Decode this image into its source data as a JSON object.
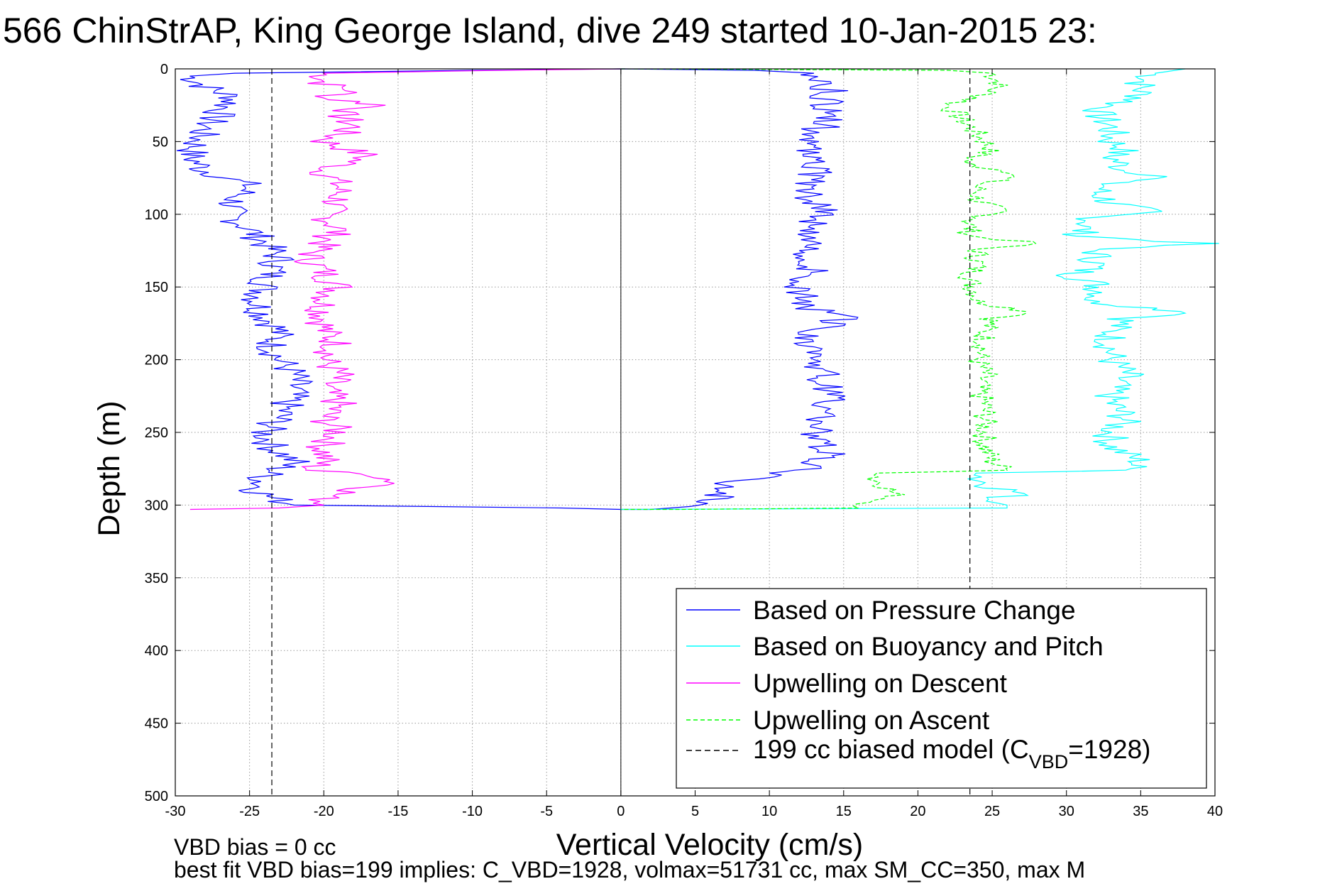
{
  "chart_data": {
    "type": "line",
    "title": "566 ChinStrAP, King George Island, dive 249 started 10-Jan-2015 23:",
    "xlabel": "Vertical Velocity (cm/s)",
    "ylabel": "Depth (m)",
    "xlim": [
      -30,
      40
    ],
    "ylim": [
      0,
      500
    ],
    "y_reversed": true,
    "grid": true,
    "legend_position": "bottom-right",
    "x_ticks": [
      "-30",
      "-25",
      "-20",
      "-15",
      "-10",
      "-5",
      "0",
      "5",
      "10",
      "15",
      "20",
      "25",
      "30",
      "35",
      "40"
    ],
    "y_ticks": [
      "0",
      "50",
      "100",
      "150",
      "200",
      "250",
      "300",
      "350",
      "400",
      "450",
      "500"
    ],
    "series": [
      {
        "name": "Based on Pressure Change",
        "color": "#0000ff",
        "style": "solid",
        "points": [
          [
            0,
            0
          ],
          [
            -10,
            1
          ],
          [
            -26,
            3
          ],
          [
            -29,
            5
          ],
          [
            -28,
            12
          ],
          [
            -26,
            20
          ],
          [
            -27,
            30
          ],
          [
            -28,
            40
          ],
          [
            -28.5,
            50
          ],
          [
            -29,
            60
          ],
          [
            -28,
            70
          ],
          [
            -25,
            80
          ],
          [
            -26,
            90
          ],
          [
            -26.5,
            100
          ],
          [
            -25,
            110
          ],
          [
            -24,
            120
          ],
          [
            -23,
            130
          ],
          [
            -23.5,
            140
          ],
          [
            -24,
            150
          ],
          [
            -24.5,
            160
          ],
          [
            -24,
            170
          ],
          [
            -23,
            180
          ],
          [
            -23.5,
            190
          ],
          [
            -23,
            200
          ],
          [
            -22,
            210
          ],
          [
            -22,
            220
          ],
          [
            -22.5,
            230
          ],
          [
            -23,
            240
          ],
          [
            -24,
            250
          ],
          [
            -23.5,
            260
          ],
          [
            -22,
            270
          ],
          [
            -24,
            280
          ],
          [
            -24.5,
            290
          ],
          [
            -23.5,
            295
          ],
          [
            -22,
            300
          ],
          [
            -4,
            302
          ],
          [
            0,
            303
          ],
          [
            2,
            303
          ],
          [
            6,
            300
          ],
          [
            7,
            292
          ],
          [
            7,
            284
          ],
          [
            9,
            282
          ],
          [
            10,
            278
          ],
          [
            12,
            276
          ],
          [
            13,
            272
          ],
          [
            14,
            266
          ],
          [
            13.5,
            260
          ],
          [
            13,
            250
          ],
          [
            13.5,
            240
          ],
          [
            14,
            230
          ],
          [
            14,
            220
          ],
          [
            13.5,
            210
          ],
          [
            13.5,
            200
          ],
          [
            13,
            190
          ],
          [
            13,
            180
          ],
          [
            15,
            172
          ],
          [
            13,
            165
          ],
          [
            12,
            155
          ],
          [
            12.5,
            145
          ],
          [
            13,
            135
          ],
          [
            12.5,
            125
          ],
          [
            12.5,
            115
          ],
          [
            13,
            105
          ],
          [
            14,
            97
          ],
          [
            13,
            90
          ],
          [
            13,
            80
          ],
          [
            13,
            70
          ],
          [
            12.5,
            60
          ],
          [
            13,
            50
          ],
          [
            13.5,
            40
          ],
          [
            14,
            30
          ],
          [
            14,
            20
          ],
          [
            14,
            10
          ],
          [
            13,
            3
          ],
          [
            9,
            1
          ],
          [
            0,
            0
          ]
        ]
      },
      {
        "name": "Based on Buoyancy and Pitch",
        "color": "#00ffff",
        "style": "solid",
        "points": [
          [
            38,
            0
          ],
          [
            36,
            3
          ],
          [
            35,
            10
          ],
          [
            35,
            20
          ],
          [
            33,
            25
          ],
          [
            32,
            30
          ],
          [
            33,
            40
          ],
          [
            33,
            50
          ],
          [
            34,
            55
          ],
          [
            33,
            60
          ],
          [
            34,
            70
          ],
          [
            37,
            74
          ],
          [
            33,
            78
          ],
          [
            32,
            85
          ],
          [
            33,
            92
          ],
          [
            35.5,
            98
          ],
          [
            32,
            102
          ],
          [
            31,
            110
          ],
          [
            31,
            115
          ],
          [
            39,
            120
          ],
          [
            32,
            124
          ],
          [
            32,
            135
          ],
          [
            30.5,
            142
          ],
          [
            32,
            148
          ],
          [
            32.5,
            155
          ],
          [
            31.5,
            160
          ],
          [
            39,
            168
          ],
          [
            34,
            172
          ],
          [
            33,
            180
          ],
          [
            33,
            190
          ],
          [
            33,
            200
          ],
          [
            34,
            210
          ],
          [
            33,
            220
          ],
          [
            33,
            230
          ],
          [
            34,
            240
          ],
          [
            33,
            250
          ],
          [
            33,
            260
          ],
          [
            35,
            270
          ],
          [
            34,
            276
          ],
          [
            25,
            278
          ],
          [
            24,
            282
          ],
          [
            25,
            287
          ],
          [
            27,
            292
          ],
          [
            25,
            296
          ],
          [
            26,
            300
          ],
          [
            26,
            302
          ],
          [
            0,
            303
          ]
        ]
      },
      {
        "name": "Upwelling on Descent",
        "color": "#ff00ff",
        "style": "solid",
        "points": [
          [
            0,
            0
          ],
          [
            -8,
            1
          ],
          [
            -20,
            3
          ],
          [
            -20,
            10
          ],
          [
            -18,
            15
          ],
          [
            -20,
            20
          ],
          [
            -16,
            25
          ],
          [
            -19,
            30
          ],
          [
            -18,
            40
          ],
          [
            -20,
            50
          ],
          [
            -17,
            60
          ],
          [
            -20,
            70
          ],
          [
            -19,
            80
          ],
          [
            -19,
            90
          ],
          [
            -20,
            100
          ],
          [
            -19,
            110
          ],
          [
            -20,
            120
          ],
          [
            -21,
            130
          ],
          [
            -20,
            140
          ],
          [
            -19,
            150
          ],
          [
            -20,
            160
          ],
          [
            -20,
            170
          ],
          [
            -20,
            180
          ],
          [
            -19,
            190
          ],
          [
            -20,
            200
          ],
          [
            -19,
            210
          ],
          [
            -20,
            220
          ],
          [
            -19,
            230
          ],
          [
            -20,
            240
          ],
          [
            -19,
            250
          ],
          [
            -20,
            260
          ],
          [
            -20,
            270
          ],
          [
            -21,
            276
          ],
          [
            -16,
            280
          ],
          [
            -15,
            285
          ],
          [
            -18,
            290
          ],
          [
            -20,
            295
          ],
          [
            -20,
            300
          ],
          [
            -23,
            302
          ],
          [
            -29,
            303
          ]
        ]
      },
      {
        "name": "Upwelling on Ascent",
        "color": "#00ff00",
        "style": "dashed",
        "points": [
          [
            0,
            0
          ],
          [
            22,
            1
          ],
          [
            25,
            3
          ],
          [
            25.5,
            10
          ],
          [
            25,
            15
          ],
          [
            24,
            20
          ],
          [
            22,
            25
          ],
          [
            23,
            35
          ],
          [
            24,
            45
          ],
          [
            25,
            55
          ],
          [
            23,
            65
          ],
          [
            27,
            72
          ],
          [
            24,
            80
          ],
          [
            24,
            90
          ],
          [
            25.5,
            98
          ],
          [
            23.5,
            105
          ],
          [
            23.5,
            115
          ],
          [
            28,
            120
          ],
          [
            24,
            124
          ],
          [
            24,
            135
          ],
          [
            23.5,
            145
          ],
          [
            24,
            155
          ],
          [
            24,
            160
          ],
          [
            28,
            168
          ],
          [
            25,
            172
          ],
          [
            24.5,
            180
          ],
          [
            24.5,
            190
          ],
          [
            24,
            200
          ],
          [
            24.5,
            210
          ],
          [
            24,
            220
          ],
          [
            24.5,
            230
          ],
          [
            24.5,
            240
          ],
          [
            24.5,
            250
          ],
          [
            24.5,
            260
          ],
          [
            25,
            270
          ],
          [
            26,
            276
          ],
          [
            18,
            278
          ],
          [
            17,
            282
          ],
          [
            18,
            288
          ],
          [
            18.5,
            294
          ],
          [
            17,
            298
          ],
          [
            16,
            302
          ],
          [
            4,
            303
          ],
          [
            0,
            303
          ]
        ]
      },
      {
        "name": "199 cc biased model (C_VBD=1928)",
        "color": "#000000",
        "style": "dashed",
        "vertical_lines_x": [
          -23.5,
          23.5
        ]
      }
    ],
    "reference_lines": {
      "x_zero_solid": 0
    }
  },
  "legend": {
    "items": [
      {
        "label": "Based on Pressure Change",
        "color": "#0000ff",
        "dash": ""
      },
      {
        "label": "Based on Buoyancy and Pitch",
        "color": "#00ffff",
        "dash": ""
      },
      {
        "label": "Upwelling on Descent",
        "color": "#ff00ff",
        "dash": ""
      },
      {
        "label": "Upwelling on Ascent",
        "color": "#00ff00",
        "dash": "6,4"
      }
    ],
    "model_label_prefix": "199 cc biased model (C",
    "model_label_sub": "VBD",
    "model_label_suffix": "=1928)",
    "model_color": "#000000"
  },
  "footer": {
    "line1": "VBD bias = 0 cc",
    "line2": "best fit VBD bias=199 implies: C_VBD=1928, volmax=51731 cc, max SM_CC=350, max M"
  }
}
